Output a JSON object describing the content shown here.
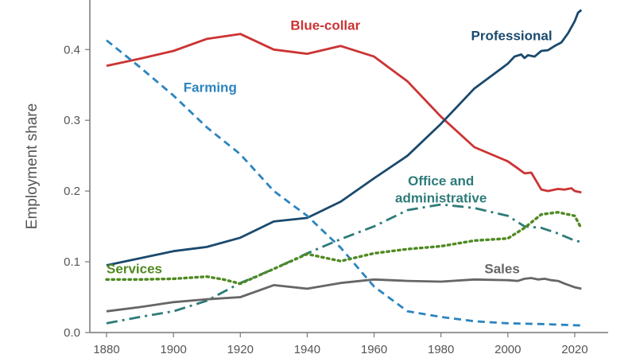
{
  "chart_data": {
    "type": "line",
    "title": "",
    "xlabel": "",
    "ylabel": "Employment share",
    "xlim": [
      1875,
      2030
    ],
    "ylim": [
      0.0,
      0.47
    ],
    "x_ticks": [
      1880,
      1900,
      1920,
      1940,
      1960,
      1980,
      2000,
      2020
    ],
    "y_ticks": [
      "0.0",
      "0.1",
      "0.2",
      "0.3",
      "0.4"
    ],
    "grid": false,
    "series": [
      {
        "name": "Blue-collar",
        "color": "#cc3333",
        "style": "solid",
        "x": [
          1880,
          1890,
          1900,
          1910,
          1920,
          1930,
          1940,
          1950,
          1960,
          1970,
          1980,
          1990,
          2000,
          2003,
          2005,
          2007,
          2009,
          2010,
          2012,
          2015,
          2017,
          2019,
          2020,
          2022
        ],
        "values": [
          0.377,
          0.387,
          0.398,
          0.415,
          0.422,
          0.4,
          0.394,
          0.405,
          0.39,
          0.355,
          0.305,
          0.262,
          0.242,
          0.232,
          0.225,
          0.226,
          0.21,
          0.202,
          0.2,
          0.203,
          0.202,
          0.204,
          0.2,
          0.198
        ]
      },
      {
        "name": "Professional",
        "color": "#1a4a6e",
        "style": "solid",
        "x": [
          1880,
          1890,
          1900,
          1910,
          1920,
          1930,
          1940,
          1950,
          1960,
          1970,
          1980,
          1990,
          2000,
          2002,
          2004,
          2005,
          2006,
          2008,
          2010,
          2012,
          2014,
          2016,
          2018,
          2020,
          2021,
          2022
        ],
        "values": [
          0.095,
          0.105,
          0.115,
          0.121,
          0.134,
          0.157,
          0.162,
          0.185,
          0.218,
          0.25,
          0.295,
          0.345,
          0.38,
          0.39,
          0.393,
          0.388,
          0.392,
          0.39,
          0.398,
          0.399,
          0.405,
          0.41,
          0.423,
          0.44,
          0.452,
          0.456
        ]
      },
      {
        "name": "Farming",
        "color": "#2b84bf",
        "style": "dashed",
        "x": [
          1880,
          1890,
          1900,
          1910,
          1920,
          1930,
          1940,
          1950,
          1960,
          1970,
          1980,
          1990,
          2000,
          2010,
          2022
        ],
        "values": [
          0.413,
          0.375,
          0.335,
          0.29,
          0.252,
          0.2,
          0.165,
          0.12,
          0.065,
          0.03,
          0.022,
          0.016,
          0.013,
          0.012,
          0.01
        ]
      },
      {
        "name": "Office and administrative",
        "color": "#2e7b79",
        "style": "dashdot",
        "x": [
          1880,
          1890,
          1900,
          1910,
          1920,
          1930,
          1940,
          1950,
          1960,
          1970,
          1980,
          1990,
          2000,
          2005,
          2010,
          2015,
          2020,
          2022
        ],
        "values": [
          0.013,
          0.022,
          0.03,
          0.045,
          0.07,
          0.09,
          0.112,
          0.132,
          0.15,
          0.173,
          0.181,
          0.176,
          0.165,
          0.15,
          0.148,
          0.14,
          0.13,
          0.128
        ]
      },
      {
        "name": "Services",
        "color": "#4f8a22",
        "style": "dotted",
        "x": [
          1880,
          1890,
          1900,
          1910,
          1915,
          1920,
          1930,
          1940,
          1950,
          1960,
          1970,
          1980,
          1990,
          2000,
          2005,
          2010,
          2015,
          2020,
          2022
        ],
        "values": [
          0.075,
          0.075,
          0.076,
          0.079,
          0.075,
          0.069,
          0.09,
          0.111,
          0.101,
          0.112,
          0.118,
          0.122,
          0.13,
          0.133,
          0.148,
          0.167,
          0.17,
          0.165,
          0.147
        ]
      },
      {
        "name": "Sales",
        "color": "#666666",
        "style": "solid",
        "x": [
          1880,
          1890,
          1900,
          1910,
          1920,
          1930,
          1940,
          1950,
          1960,
          1970,
          1980,
          1990,
          2000,
          2003,
          2005,
          2007,
          2009,
          2011,
          2013,
          2015,
          2017,
          2020,
          2022
        ],
        "values": [
          0.03,
          0.036,
          0.043,
          0.047,
          0.05,
          0.067,
          0.062,
          0.07,
          0.075,
          0.073,
          0.072,
          0.075,
          0.074,
          0.073,
          0.076,
          0.077,
          0.075,
          0.076,
          0.074,
          0.073,
          0.069,
          0.064,
          0.062
        ]
      }
    ],
    "labels": [
      {
        "text": "Blue-collar",
        "series": "Blue-collar",
        "at_x": 1935,
        "at_y": 0.428,
        "anchor": "start"
      },
      {
        "text": "Professional",
        "series": "Professional",
        "at_x": 1989,
        "at_y": 0.413,
        "anchor": "start"
      },
      {
        "text": "Farming",
        "series": "Farming",
        "at_x": 1903,
        "at_y": 0.34,
        "anchor": "start"
      },
      {
        "text": "Office and",
        "series": "Office and administrative",
        "at_x": 1980,
        "at_y": 0.208,
        "anchor": "middle"
      },
      {
        "text": "administrative",
        "series": "Office and administrative",
        "at_x": 1980,
        "at_y": 0.184,
        "anchor": "middle"
      },
      {
        "text": "Services",
        "series": "Services",
        "at_x": 1880,
        "at_y": 0.084,
        "anchor": "start"
      },
      {
        "text": "Sales",
        "series": "Sales",
        "at_x": 1993,
        "at_y": 0.084,
        "anchor": "start"
      }
    ]
  }
}
